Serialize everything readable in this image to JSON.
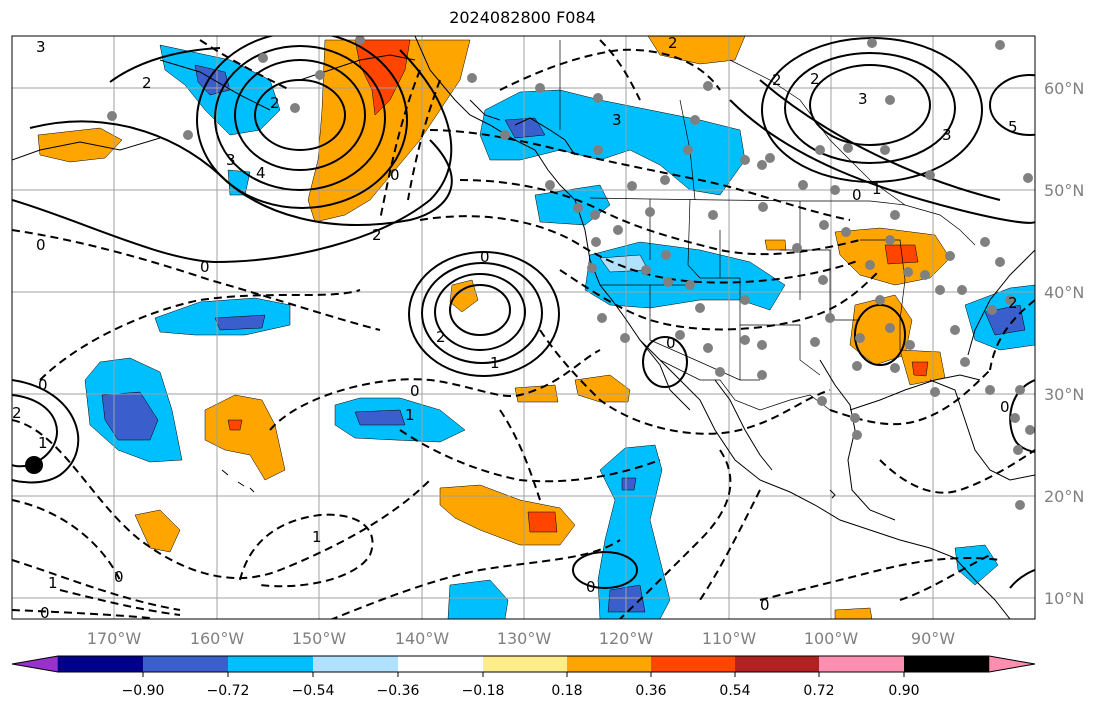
{
  "title": "2024082800 F084",
  "longitude_labels": [
    "170°W",
    "160°W",
    "150°W",
    "140°W",
    "130°W",
    "120°W",
    "110°W",
    "100°W",
    "90°W"
  ],
  "latitude_labels": [
    "60°N",
    "50°N",
    "40°N",
    "30°N",
    "20°N",
    "10°N"
  ],
  "colorbar": {
    "ticks": [
      "−0.90",
      "−0.72",
      "−0.54",
      "−0.36",
      "−0.18",
      "0.18",
      "0.36",
      "0.54",
      "0.72",
      "0.90"
    ],
    "colors": [
      "#9932cc",
      "#00008b",
      "#3a5fcd",
      "#00bfff",
      "#b0e2ff",
      "#ffffff",
      "#ffec8b",
      "#ffa500",
      "#ff4500",
      "#b22222",
      "#ff8fb1"
    ]
  },
  "contour_labels": {
    "l1": "3",
    "l2": "2",
    "l3": "3",
    "l4": "4",
    "l5": "2",
    "l6": "0",
    "l7": "2",
    "l8": "0",
    "l9": "0",
    "l10": "2",
    "l11": "1",
    "l12": "0",
    "l13": "1",
    "l14": "0",
    "l15": "1",
    "l16": "0",
    "l17": "0",
    "l18": "3",
    "l19": "3",
    "l20": "2",
    "l21": "0",
    "l22": "1",
    "l23": "0",
    "l24": "3",
    "l25": "1",
    "l26": "0",
    "l27": "0",
    "l28": "1",
    "l29": "2",
    "l30": "2",
    "l31": "5",
    "l32": "2",
    "l33": "0",
    "l34": "0",
    "l35": "2"
  }
}
